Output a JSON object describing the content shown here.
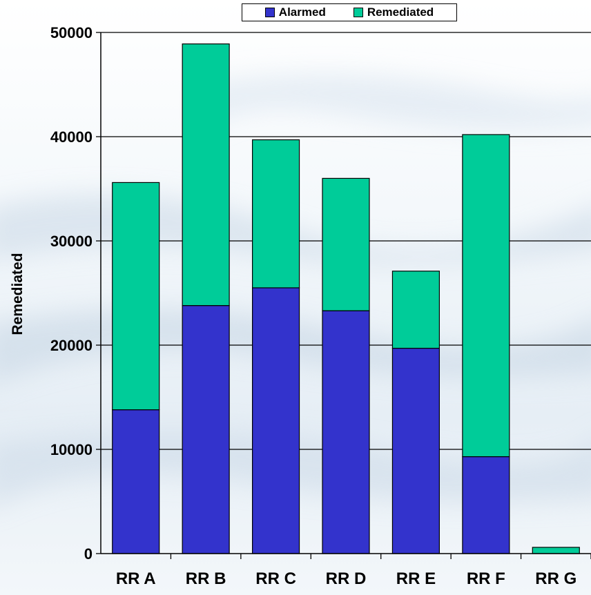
{
  "chart_data": {
    "type": "bar",
    "stacked": true,
    "title": "",
    "xlabel": "",
    "ylabel": "Remediated",
    "ylim": [
      0,
      50000
    ],
    "yticks": [
      0,
      10000,
      20000,
      30000,
      40000,
      50000
    ],
    "ytick_labels": [
      "0",
      "10000",
      "20000",
      "30000",
      "40000",
      "50000"
    ],
    "grid": true,
    "legend": "top-center",
    "categories": [
      "RR A",
      "RR B",
      "RR C",
      "RR D",
      "RR E",
      "RR F",
      "RR G"
    ],
    "series": [
      {
        "name": "Alarmed",
        "color": "#3333cc",
        "values": [
          13800,
          23800,
          25500,
          23300,
          19700,
          9300,
          0
        ]
      },
      {
        "name": "Remediated",
        "color": "#00cc99",
        "values": [
          21800,
          25100,
          14200,
          12700,
          7400,
          30900,
          600
        ]
      }
    ]
  }
}
